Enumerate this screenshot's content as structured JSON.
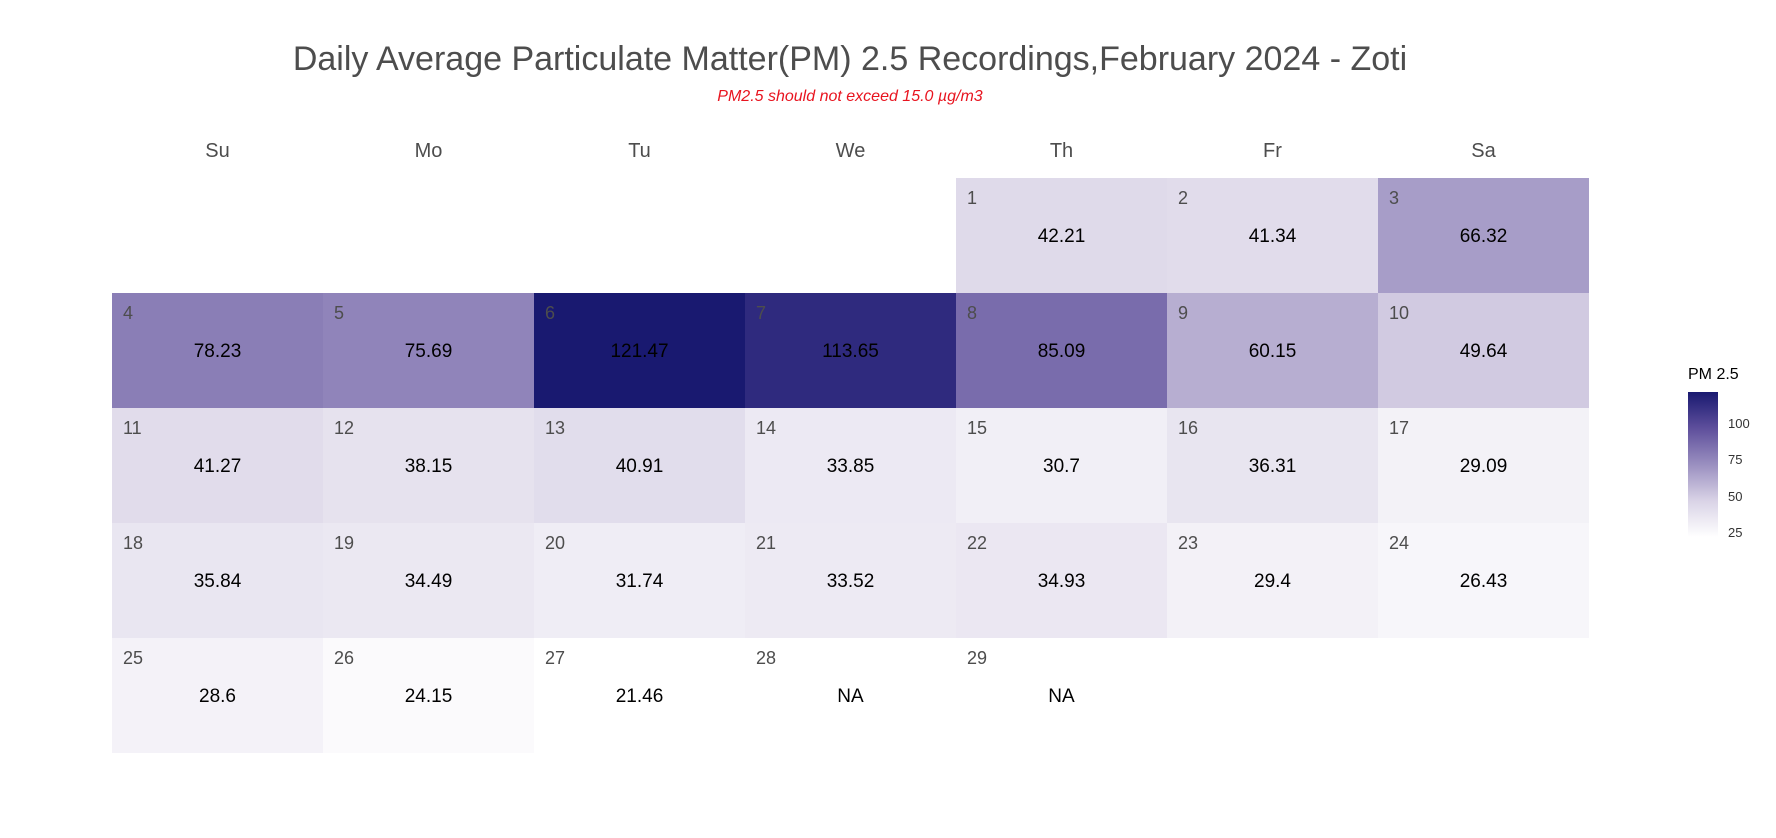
{
  "chart_data": {
    "type": "heatmap",
    "title": "Daily Average Particulate Matter(PM) 2.5 Recordings,February 2024 - Zoti",
    "subtitle": "PM2.5 should not exceed 15.0 µg/m3",
    "weekdays": [
      "Su",
      "Mo",
      "Tu",
      "We",
      "Th",
      "Fr",
      "Sa"
    ],
    "first_weekday_index": 4,
    "days": [
      {
        "day": "1",
        "value": 42.21,
        "label": "42.21"
      },
      {
        "day": "2",
        "value": 41.34,
        "label": "41.34"
      },
      {
        "day": "3",
        "value": 66.32,
        "label": "66.32"
      },
      {
        "day": "4",
        "value": 78.23,
        "label": "78.23"
      },
      {
        "day": "5",
        "value": 75.69,
        "label": "75.69"
      },
      {
        "day": "6",
        "value": 121.47,
        "label": "121.47"
      },
      {
        "day": "7",
        "value": 113.65,
        "label": "113.65"
      },
      {
        "day": "8",
        "value": 85.09,
        "label": "85.09"
      },
      {
        "day": "9",
        "value": 60.15,
        "label": "60.15"
      },
      {
        "day": "10",
        "value": 49.64,
        "label": "49.64"
      },
      {
        "day": "11",
        "value": 41.27,
        "label": "41.27"
      },
      {
        "day": "12",
        "value": 38.15,
        "label": "38.15"
      },
      {
        "day": "13",
        "value": 40.91,
        "label": "40.91"
      },
      {
        "day": "14",
        "value": 33.85,
        "label": "33.85"
      },
      {
        "day": "15",
        "value": 30.7,
        "label": "30.7"
      },
      {
        "day": "16",
        "value": 36.31,
        "label": "36.31"
      },
      {
        "day": "17",
        "value": 29.09,
        "label": "29.09"
      },
      {
        "day": "18",
        "value": 35.84,
        "label": "35.84"
      },
      {
        "day": "19",
        "value": 34.49,
        "label": "34.49"
      },
      {
        "day": "20",
        "value": 31.74,
        "label": "31.74"
      },
      {
        "day": "21",
        "value": 33.52,
        "label": "33.52"
      },
      {
        "day": "22",
        "value": 34.93,
        "label": "34.93"
      },
      {
        "day": "23",
        "value": 29.4,
        "label": "29.4"
      },
      {
        "day": "24",
        "value": 26.43,
        "label": "26.43"
      },
      {
        "day": "25",
        "value": 28.6,
        "label": "28.6"
      },
      {
        "day": "26",
        "value": 24.15,
        "label": "24.15"
      },
      {
        "day": "27",
        "value": 21.46,
        "label": "21.46"
      },
      {
        "day": "28",
        "value": null,
        "label": "NA"
      },
      {
        "day": "29",
        "value": null,
        "label": "NA"
      }
    ],
    "legend": {
      "title": "PM 2.5",
      "ticks": [
        25,
        50,
        75,
        100
      ],
      "range": [
        21.46,
        121.47
      ],
      "color_low": "#ffffff",
      "color_high": "#191970",
      "na_color": "#ffffff",
      "position": "right"
    }
  }
}
